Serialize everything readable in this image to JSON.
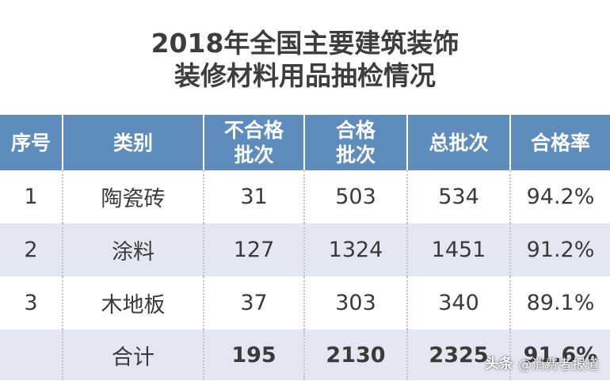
{
  "title": {
    "line1": "2018年全国主要建筑装饰",
    "line2": "装修材料用品抽检情况"
  },
  "table": {
    "headers": [
      {
        "line1": "序号",
        "line2": ""
      },
      {
        "line1": "类别",
        "line2": ""
      },
      {
        "line1": "不合格",
        "line2": "批次"
      },
      {
        "line1": "合格",
        "line2": "批次"
      },
      {
        "line1": "总批次",
        "line2": ""
      },
      {
        "line1": "合格率",
        "line2": ""
      }
    ],
    "rows": [
      {
        "no": "1",
        "category": "陶瓷砖",
        "unqualified": "31",
        "qualified": "503",
        "total": "534",
        "rate": "94.2%"
      },
      {
        "no": "2",
        "category": "涂料",
        "unqualified": "127",
        "qualified": "1324",
        "total": "1451",
        "rate": "91.2%"
      },
      {
        "no": "3",
        "category": "木地板",
        "unqualified": "37",
        "qualified": "303",
        "total": "340",
        "rate": "89.1%"
      }
    ],
    "total_row": {
      "no": "",
      "label": "合计",
      "unqualified": "195",
      "qualified": "2130",
      "total": "2325",
      "rate": "91.6%"
    }
  },
  "watermark": {
    "logo": "头条",
    "account": "@消费者报道"
  },
  "colors": {
    "header_bg": "#5e8dbd",
    "alt_row_bg": "#e2e7f1",
    "text": "#3a3a3a"
  }
}
